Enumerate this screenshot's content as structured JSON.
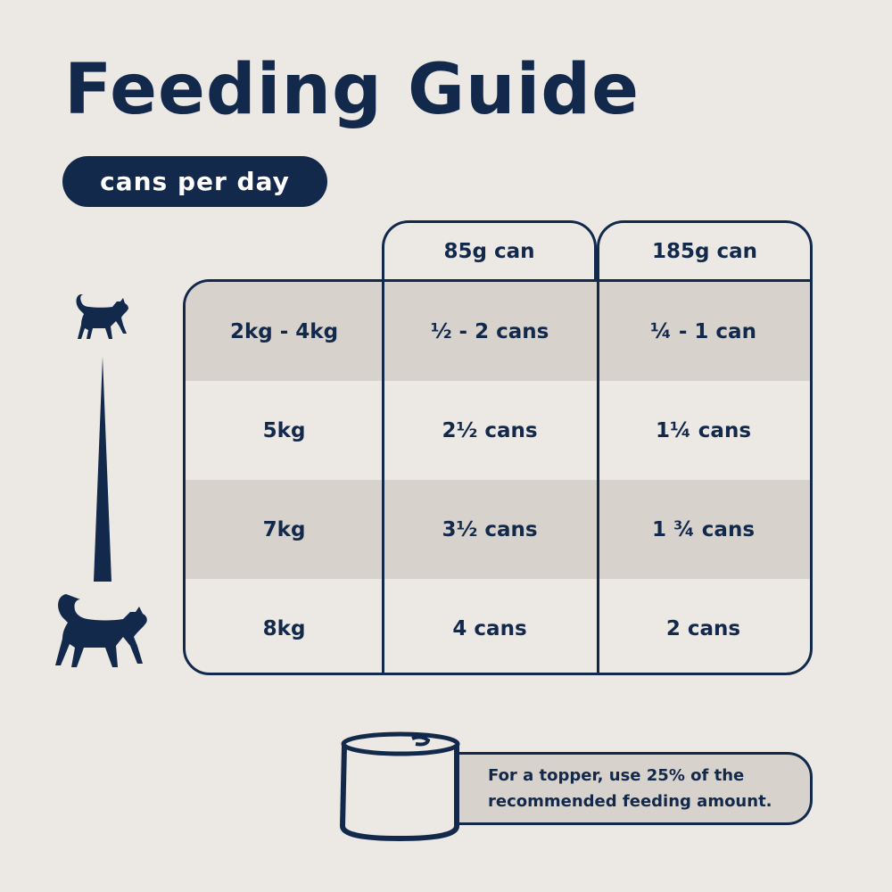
{
  "title": "Feeding Guide",
  "subtitle_pill": "cans per day",
  "table": {
    "headers": [
      "",
      "85g can",
      "185g can"
    ],
    "rows": [
      {
        "weight": "2kg - 4kg",
        "can_85g": "½ - 2 cans",
        "can_185g": "¼ - 1 can"
      },
      {
        "weight": "5kg",
        "can_85g": "2½ cans",
        "can_185g": "1¼ cans"
      },
      {
        "weight": "7kg",
        "can_85g": "3½ cans",
        "can_185g": "1 ¾ cans"
      },
      {
        "weight": "8kg",
        "can_85g": "4 cans",
        "can_185g": "2 cans"
      }
    ]
  },
  "note": {
    "line1": "For a topper, use 25% of the",
    "line2": "recommended feeding amount."
  },
  "icons": [
    "small-cat-icon",
    "size-scale-wedge-icon",
    "large-cat-icon",
    "can-icon"
  ],
  "colors": {
    "navy": "#13294b",
    "background": "#ece8e4",
    "shaded_row": "#d8d2cc"
  }
}
